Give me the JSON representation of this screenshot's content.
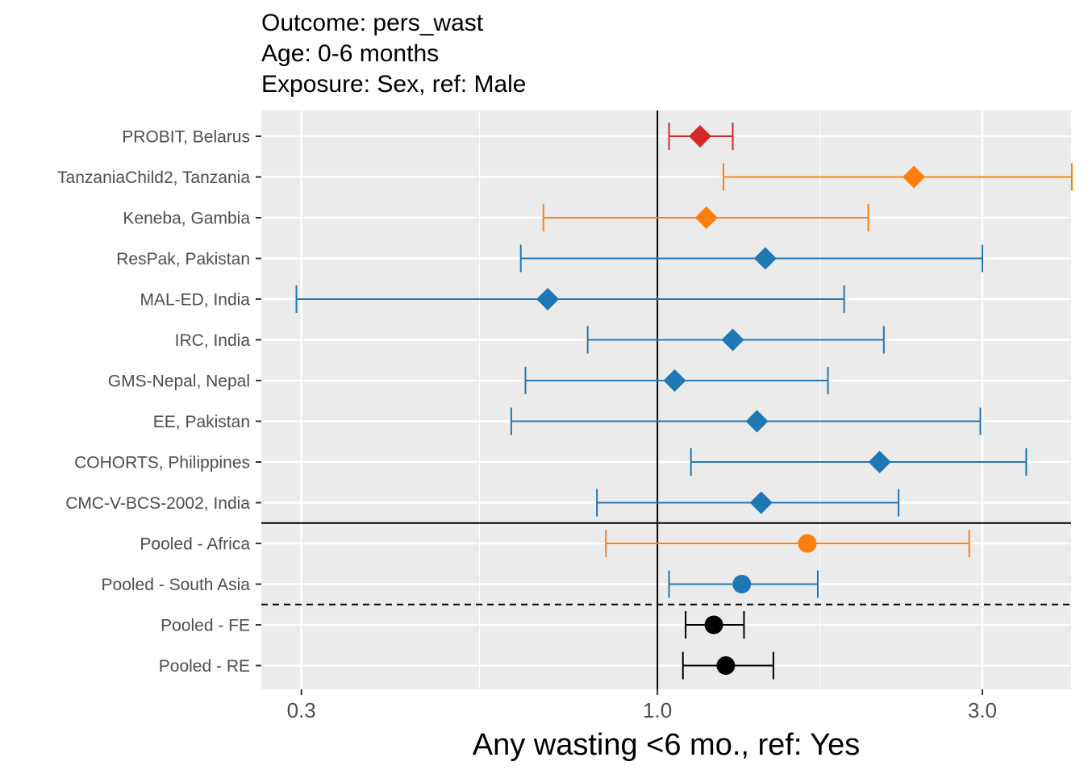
{
  "chart_data": {
    "type": "scatter",
    "title_lines": [
      "Outcome: pers_wast",
      "Age: 0-6 months",
      "Exposure: Sex, ref: Male"
    ],
    "xlabel": "Any wasting  <6 mo., ref: Yes",
    "ylabel": "",
    "x_scale": "log",
    "xlim": [
      0.262,
      4.05
    ],
    "x_ticks": [
      0.3,
      1.0,
      3.0
    ],
    "x_tick_labels": [
      "0.3",
      "1.0",
      "3.0"
    ],
    "x_minor_ticks": [
      0.548,
      1.732
    ],
    "reference_x": 1.0,
    "grid": true,
    "legend": "none",
    "colors": {
      "europe": "#D62728",
      "africa": "#FF7F0E",
      "asia": "#1F77B4",
      "pooled": "#000000",
      "panel": "#EBEBEB",
      "grid": "#FFFFFF",
      "axis_text": "#4D4D4D"
    },
    "rows": [
      {
        "label": "PROBIT, Belarus",
        "est": 1.155,
        "lower": 1.04,
        "upper": 1.29,
        "color": "europe",
        "marker": "diamond"
      },
      {
        "label": "TanzaniaChild2, Tanzania",
        "est": 2.38,
        "lower": 1.25,
        "upper": 4.06,
        "color": "africa",
        "marker": "diamond"
      },
      {
        "label": "Keneba, Gambia",
        "est": 1.18,
        "lower": 0.68,
        "upper": 2.04,
        "color": "africa",
        "marker": "diamond"
      },
      {
        "label": "ResPak, Pakistan",
        "est": 1.44,
        "lower": 0.63,
        "upper": 3.0,
        "color": "asia",
        "marker": "diamond"
      },
      {
        "label": "MAL-ED, India",
        "est": 0.69,
        "lower": 0.295,
        "upper": 1.88,
        "color": "asia",
        "marker": "diamond"
      },
      {
        "label": "IRC, India",
        "est": 1.29,
        "lower": 0.79,
        "upper": 2.15,
        "color": "asia",
        "marker": "diamond"
      },
      {
        "label": "GMS-Nepal, Nepal",
        "est": 1.06,
        "lower": 0.64,
        "upper": 1.78,
        "color": "asia",
        "marker": "diamond"
      },
      {
        "label": "EE, Pakistan",
        "est": 1.4,
        "lower": 0.61,
        "upper": 2.98,
        "color": "asia",
        "marker": "diamond"
      },
      {
        "label": "COHORTS, Philippines",
        "est": 2.12,
        "lower": 1.12,
        "upper": 3.48,
        "color": "asia",
        "marker": "diamond"
      },
      {
        "label": "CMC-V-BCS-2002, India",
        "est": 1.42,
        "lower": 0.815,
        "upper": 2.26,
        "color": "asia",
        "marker": "diamond"
      },
      {
        "label": "Pooled - Africa",
        "est": 1.66,
        "lower": 0.84,
        "upper": 2.87,
        "color": "africa",
        "marker": "circle"
      },
      {
        "label": "Pooled - South Asia",
        "est": 1.33,
        "lower": 1.04,
        "upper": 1.72,
        "color": "asia",
        "marker": "circle"
      },
      {
        "label": "Pooled - FE",
        "est": 1.21,
        "lower": 1.1,
        "upper": 1.34,
        "color": "pooled",
        "marker": "circle"
      },
      {
        "label": "Pooled - RE",
        "est": 1.26,
        "lower": 1.09,
        "upper": 1.48,
        "color": "pooled",
        "marker": "circle"
      }
    ],
    "separators": [
      {
        "after_row": 9,
        "style": "solid"
      },
      {
        "after_row": 11,
        "style": "dashed"
      }
    ]
  }
}
